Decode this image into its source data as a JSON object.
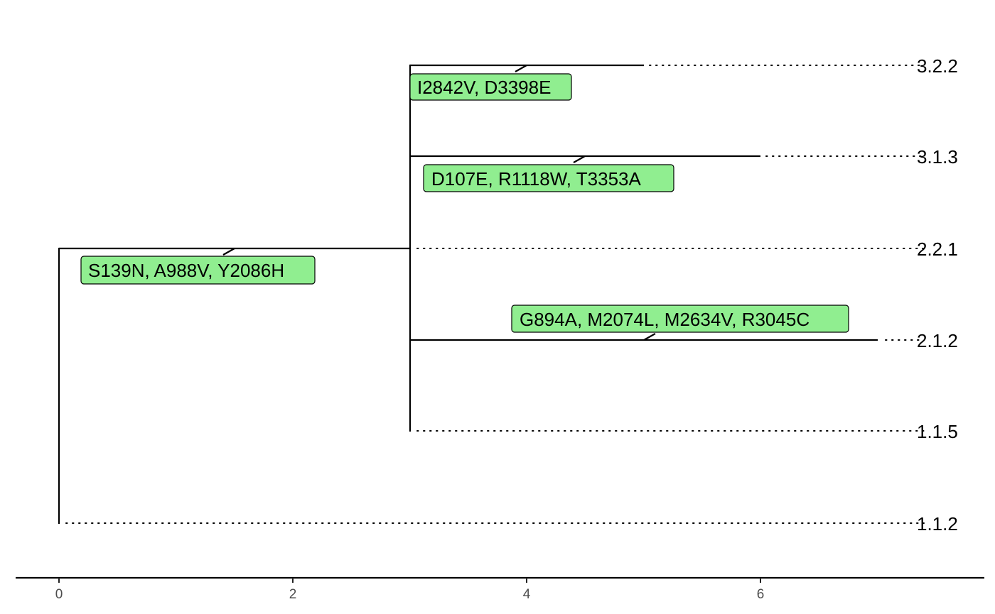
{
  "tree": {
    "tips": [
      "3.2.2",
      "3.1.3",
      "2.2.1",
      "2.1.2",
      "1.1.5",
      "1.1.2"
    ],
    "axis": {
      "ticks": [
        0,
        2,
        4,
        6
      ]
    },
    "mutations": [
      "I2842V, D3398E",
      "D107E, R1118W, T3353A",
      "S139N, A988V, Y2086H",
      "G894A, M2074L, M2634V, R3045C"
    ],
    "label_color": "#90EE90"
  }
}
